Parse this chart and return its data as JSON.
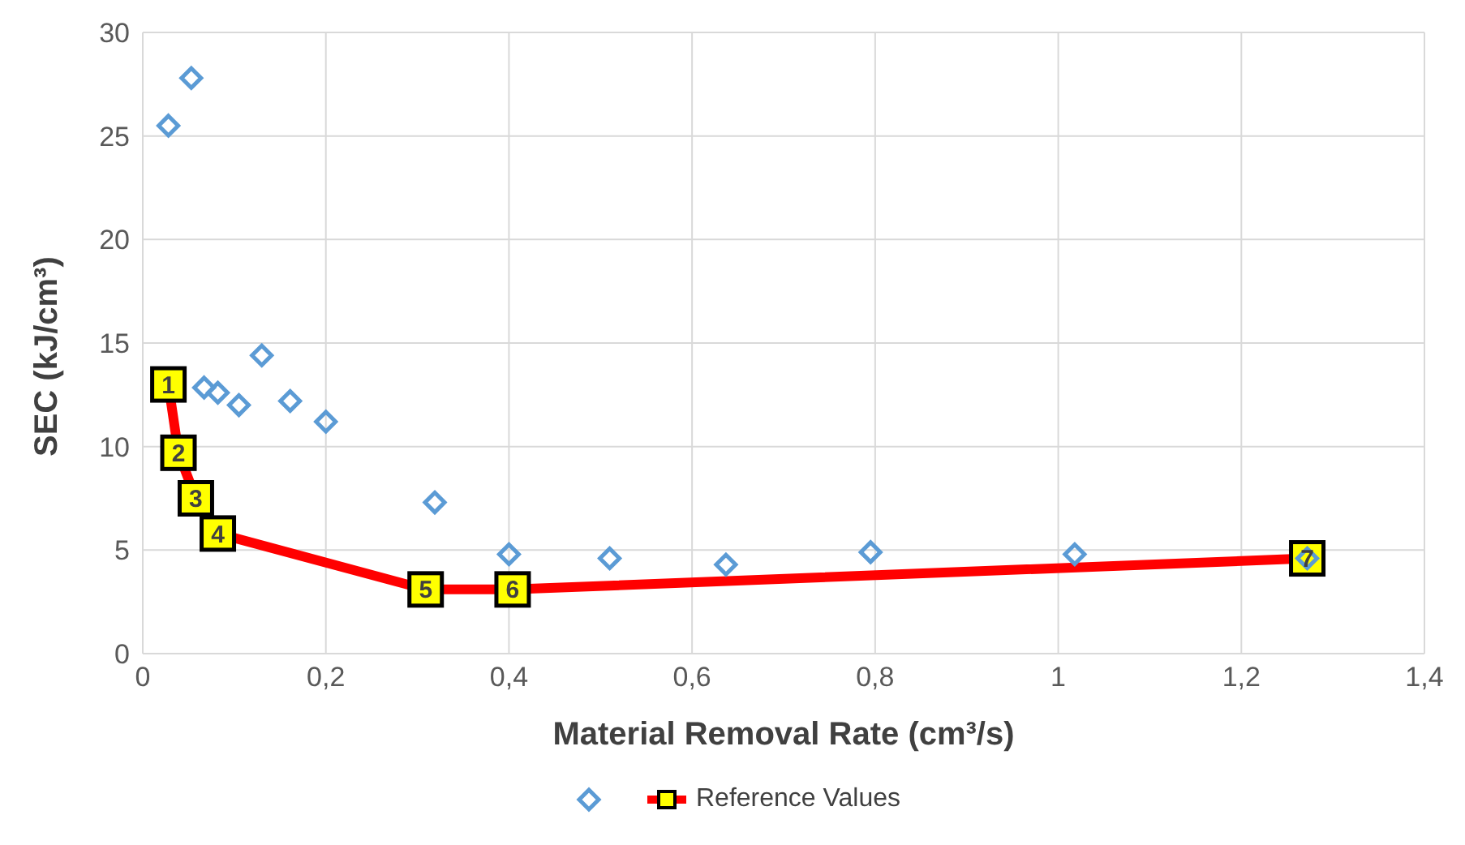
{
  "chart_data": {
    "type": "scatter",
    "xlabel": "Material Removal Rate (cm³/s)",
    "ylabel": "SEC (kJ/cm³)",
    "xlim": [
      0,
      1.4
    ],
    "xticks": [
      0,
      {
        "value": 0.2,
        "label": "0,2"
      },
      {
        "value": 0.4,
        "label": "0,4"
      },
      {
        "value": 0.6,
        "label": "0,6"
      },
      {
        "value": 0.8,
        "label": "0,8"
      },
      1,
      {
        "value": 1.2,
        "label": "1,2"
      },
      {
        "value": 1.4,
        "label": "1,4"
      }
    ],
    "annotations": [
      {
        "text": "1",
        "x": 0.028,
        "y": 13.0
      },
      {
        "text": "2",
        "x": 0.039,
        "y": 9.7
      },
      {
        "text": "3",
        "x": 0.058,
        "y": 7.5
      },
      {
        "text": "4",
        "x": 0.082,
        "y": 5.8
      },
      {
        "text": "5",
        "x": 0.309,
        "y": 3.1
      },
      {
        "text": "6",
        "x": 0.404,
        "y": 3.1
      },
      {
        "text": "7",
        "x": 1.272,
        "y": 4.6
      }
    ],
    "ylim": [
      0,
      30
    ],
    "yticks": [
      0,
      5,
      10,
      15,
      20,
      25,
      30
    ],
    "grid": true,
    "legend": "bottom",
    "series": [
      {
        "type": "scatter",
        "marker": "diamond",
        "color": "#5b9bd5",
        "x": [
          0.028,
          0.053,
          0.067,
          0.082,
          0.105,
          0.13,
          0.161,
          0.2,
          0.319,
          0.4,
          0.51,
          0.637,
          0.795,
          1.018,
          1.272
        ],
        "values": [
          25.5,
          27.8,
          12.85,
          12.6,
          12.0,
          14.4,
          12.2,
          11.2,
          7.3,
          4.8,
          4.6,
          4.3,
          4.9,
          4.8,
          4.6
        ]
      },
      {
        "type": "line",
        "name": "Reference Values",
        "marker": "square",
        "line_style": "solid",
        "color": "#ff0000",
        "x": [
          0.028,
          0.039,
          0.058,
          0.082,
          0.309,
          0.404,
          1.272
        ],
        "values": [
          13.0,
          9.7,
          7.5,
          5.8,
          3.1,
          3.1,
          4.6
        ]
      }
    ]
  }
}
